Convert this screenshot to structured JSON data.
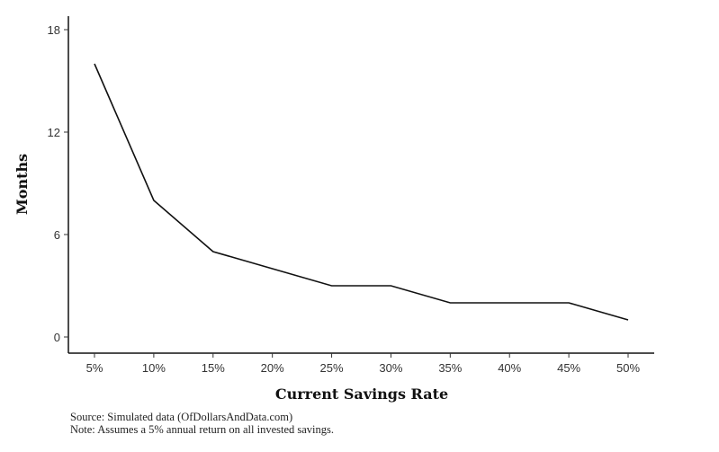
{
  "chart_data": {
    "type": "line",
    "x": [
      "5%",
      "10%",
      "15%",
      "20%",
      "25%",
      "30%",
      "35%",
      "40%",
      "45%",
      "50%"
    ],
    "series": [
      {
        "name": "Months",
        "values": [
          16,
          8,
          5,
          4,
          3,
          3,
          2,
          2,
          2,
          1
        ]
      }
    ],
    "xlabel": "Current Savings Rate",
    "ylabel": "Months",
    "yticks": [
      0,
      6,
      12,
      18
    ],
    "ylim": [
      0,
      18
    ],
    "grid": false,
    "line_color": "#111111"
  },
  "footer": {
    "source": "Source:  Simulated data (OfDollarsAndData.com)",
    "note": "Note: Assumes a 5% annual return on all invested savings."
  }
}
